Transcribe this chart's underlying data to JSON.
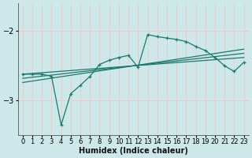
{
  "xlabel": "Humidex (Indice chaleur)",
  "ylabel": "",
  "background_color": "#cce8e8",
  "grid_color": "#f5c8c8",
  "line_color": "#1a7a6e",
  "xlim": [
    -0.5,
    23.5
  ],
  "ylim": [
    -3.5,
    -1.6
  ],
  "yticks": [
    -3,
    -2
  ],
  "xticks": [
    0,
    1,
    2,
    3,
    4,
    5,
    6,
    7,
    8,
    9,
    10,
    11,
    12,
    13,
    14,
    15,
    16,
    17,
    18,
    19,
    20,
    21,
    22,
    23
  ],
  "main_series_x": [
    0,
    1,
    2,
    3,
    4,
    5,
    6,
    7,
    8,
    9,
    10,
    11,
    12,
    13,
    14,
    15,
    16,
    17,
    18,
    19,
    20,
    21,
    22,
    23
  ],
  "main_series_y": [
    -2.62,
    -2.62,
    -2.62,
    -2.65,
    -3.35,
    -2.9,
    -2.78,
    -2.65,
    -2.48,
    -2.42,
    -2.38,
    -2.35,
    -2.52,
    -2.05,
    -2.08,
    -2.1,
    -2.12,
    -2.15,
    -2.22,
    -2.28,
    -2.38,
    -2.5,
    -2.58,
    -2.45
  ],
  "line1_x": [
    0,
    23
  ],
  "line1_y": [
    -2.62,
    -2.38
  ],
  "line2_x": [
    0,
    23
  ],
  "line2_y": [
    -2.68,
    -2.32
  ],
  "line3_x": [
    0,
    23
  ],
  "line3_y": [
    -2.74,
    -2.26
  ]
}
